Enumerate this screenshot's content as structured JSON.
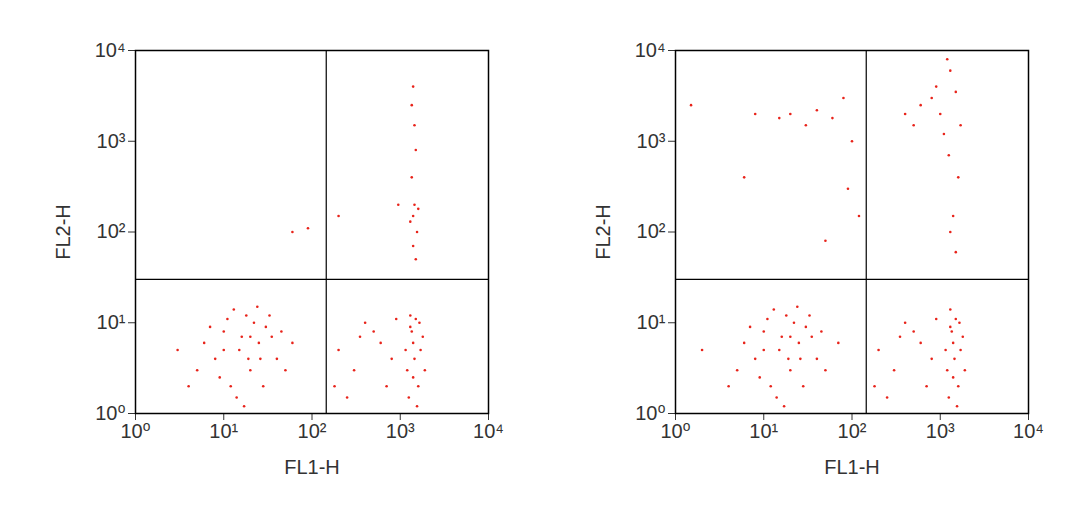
{
  "chart_data": [
    {
      "type": "scatter",
      "xlabel": "FL1-H",
      "ylabel": "FL2-H",
      "log": true,
      "color": "#e8231a",
      "marker": "dot",
      "xlim": [
        1,
        10000
      ],
      "ylim": [
        1,
        10000
      ],
      "xticks": [
        {
          "value": 1,
          "label": "10⁰"
        },
        {
          "value": 10,
          "label": "10¹"
        },
        {
          "value": 100,
          "label": "10²"
        },
        {
          "value": 1000,
          "label": "10³"
        },
        {
          "value": 10000,
          "label": "10⁴"
        }
      ],
      "yticks": [
        {
          "value": 1,
          "label": "10⁰"
        },
        {
          "value": 10,
          "label": "10¹"
        },
        {
          "value": 100,
          "label": "10²"
        },
        {
          "value": 1000,
          "label": "10³"
        },
        {
          "value": 10000,
          "label": "10⁴"
        }
      ],
      "gates": {
        "x": 145,
        "y": 30
      },
      "points": [
        [
          15,
          5
        ],
        [
          10,
          8
        ],
        [
          20,
          3
        ],
        [
          12,
          2
        ],
        [
          25,
          6
        ],
        [
          8,
          4
        ],
        [
          30,
          9
        ],
        [
          18,
          12
        ],
        [
          6,
          6
        ],
        [
          40,
          4
        ],
        [
          14,
          1.5
        ],
        [
          22,
          10
        ],
        [
          9,
          2.5
        ],
        [
          35,
          7
        ],
        [
          5,
          3
        ],
        [
          16,
          7
        ],
        [
          28,
          2
        ],
        [
          11,
          11
        ],
        [
          45,
          8
        ],
        [
          19,
          4
        ],
        [
          7,
          9
        ],
        [
          13,
          14
        ],
        [
          50,
          3
        ],
        [
          3,
          5
        ],
        [
          24,
          15
        ],
        [
          17,
          1.2
        ],
        [
          33,
          12
        ],
        [
          10,
          5
        ],
        [
          20,
          7
        ],
        [
          60,
          6
        ],
        [
          4,
          2
        ],
        [
          26,
          4
        ],
        [
          1200,
          3
        ],
        [
          1400,
          6
        ],
        [
          1600,
          2
        ],
        [
          1300,
          9
        ],
        [
          1500,
          11
        ],
        [
          1700,
          5
        ],
        [
          1250,
          1.5
        ],
        [
          1450,
          4
        ],
        [
          1800,
          7
        ],
        [
          1350,
          8
        ],
        [
          1550,
          1.2
        ],
        [
          1650,
          10
        ],
        [
          1150,
          5
        ],
        [
          1400,
          2.5
        ],
        [
          1900,
          3
        ],
        [
          1300,
          12
        ],
        [
          200,
          5
        ],
        [
          300,
          3
        ],
        [
          500,
          8
        ],
        [
          700,
          2
        ],
        [
          400,
          10
        ],
        [
          250,
          1.5
        ],
        [
          600,
          6
        ],
        [
          800,
          4
        ],
        [
          350,
          7
        ],
        [
          900,
          11
        ],
        [
          180,
          2
        ],
        [
          1400,
          4000
        ],
        [
          1350,
          2500
        ],
        [
          1450,
          1500
        ],
        [
          1500,
          800
        ],
        [
          1350,
          400
        ],
        [
          1450,
          200
        ],
        [
          1400,
          150
        ],
        [
          1550,
          100
        ],
        [
          1400,
          70
        ],
        [
          1500,
          50
        ],
        [
          1300,
          130
        ],
        [
          1600,
          180
        ],
        [
          60,
          100
        ],
        [
          90,
          110
        ],
        [
          200,
          150
        ],
        [
          950,
          200
        ]
      ]
    },
    {
      "type": "scatter",
      "xlabel": "FL1-H",
      "ylabel": "FL2-H",
      "log": true,
      "color": "#e8231a",
      "marker": "dot",
      "xlim": [
        1,
        10000
      ],
      "ylim": [
        1,
        10000
      ],
      "xticks": [
        {
          "value": 1,
          "label": "10⁰"
        },
        {
          "value": 10,
          "label": "10¹"
        },
        {
          "value": 100,
          "label": "10²"
        },
        {
          "value": 1000,
          "label": "10³"
        },
        {
          "value": 10000,
          "label": "10⁴"
        }
      ],
      "yticks": [
        {
          "value": 1,
          "label": "10⁰"
        },
        {
          "value": 10,
          "label": "10¹"
        },
        {
          "value": 100,
          "label": "10²"
        },
        {
          "value": 1000,
          "label": "10³"
        },
        {
          "value": 10000,
          "label": "10⁴"
        }
      ],
      "gates": {
        "x": 145,
        "y": 30
      },
      "points": [
        [
          15,
          5
        ],
        [
          10,
          8
        ],
        [
          20,
          3
        ],
        [
          12,
          2
        ],
        [
          25,
          6
        ],
        [
          8,
          4
        ],
        [
          30,
          9
        ],
        [
          18,
          12
        ],
        [
          6,
          6
        ],
        [
          40,
          4
        ],
        [
          14,
          1.5
        ],
        [
          22,
          10
        ],
        [
          9,
          2.5
        ],
        [
          35,
          7
        ],
        [
          5,
          3
        ],
        [
          16,
          7
        ],
        [
          28,
          2
        ],
        [
          11,
          11
        ],
        [
          45,
          8
        ],
        [
          19,
          4
        ],
        [
          7,
          9
        ],
        [
          13,
          14
        ],
        [
          50,
          3
        ],
        [
          2,
          5
        ],
        [
          24,
          15
        ],
        [
          17,
          1.2
        ],
        [
          33,
          12
        ],
        [
          10,
          5
        ],
        [
          20,
          7
        ],
        [
          70,
          6
        ],
        [
          4,
          2
        ],
        [
          26,
          4
        ],
        [
          1200,
          3
        ],
        [
          1400,
          6
        ],
        [
          1600,
          2
        ],
        [
          1300,
          9
        ],
        [
          1500,
          11
        ],
        [
          1700,
          5
        ],
        [
          1250,
          1.5
        ],
        [
          1450,
          4
        ],
        [
          1800,
          7
        ],
        [
          1350,
          8
        ],
        [
          1550,
          1.2
        ],
        [
          1650,
          10
        ],
        [
          1150,
          5
        ],
        [
          1400,
          2.5
        ],
        [
          1900,
          3
        ],
        [
          1300,
          14
        ],
        [
          200,
          5
        ],
        [
          300,
          3
        ],
        [
          500,
          8
        ],
        [
          700,
          2
        ],
        [
          400,
          10
        ],
        [
          250,
          1.5
        ],
        [
          600,
          6
        ],
        [
          800,
          4
        ],
        [
          350,
          7
        ],
        [
          900,
          11
        ],
        [
          180,
          2
        ],
        [
          1.5,
          2500
        ],
        [
          8,
          2000
        ],
        [
          15,
          1800
        ],
        [
          20,
          2000
        ],
        [
          30,
          1500
        ],
        [
          40,
          2200
        ],
        [
          60,
          1800
        ],
        [
          80,
          3000
        ],
        [
          100,
          1000
        ],
        [
          6,
          400
        ],
        [
          50,
          80
        ],
        [
          90,
          300
        ],
        [
          120,
          150
        ],
        [
          400,
          2000
        ],
        [
          500,
          1500
        ],
        [
          600,
          2500
        ],
        [
          800,
          3000
        ],
        [
          1000,
          2000
        ],
        [
          1200,
          8000
        ],
        [
          1300,
          6000
        ],
        [
          1500,
          3500
        ],
        [
          1100,
          1200
        ],
        [
          1600,
          400
        ],
        [
          1400,
          150
        ],
        [
          1300,
          100
        ],
        [
          1500,
          60
        ],
        [
          1700,
          1500
        ],
        [
          900,
          4000
        ],
        [
          1250,
          700
        ]
      ]
    }
  ]
}
